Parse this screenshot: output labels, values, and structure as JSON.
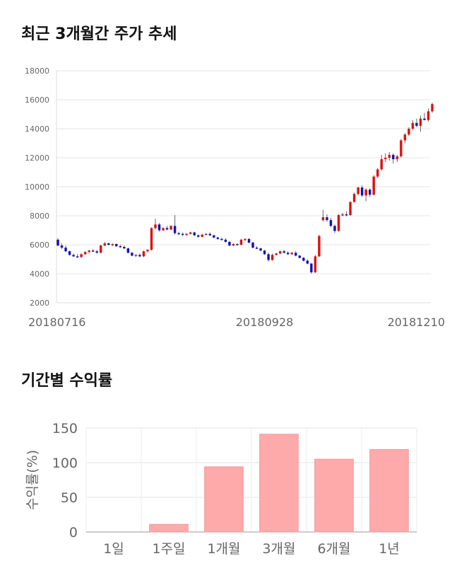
{
  "sections": {
    "price_title": "최근 3개월간 주가 추세",
    "return_title": "기간별 수익률"
  },
  "chart_data": [
    {
      "type": "candlestick",
      "title": "최근 3개월간 주가 추세",
      "ylim": [
        2000,
        18000
      ],
      "y_ticks": [
        "2000",
        "4000",
        "6000",
        "8000",
        "10000",
        "12000",
        "14000",
        "16000",
        "18000"
      ],
      "x_tick_labels": [
        "20180716",
        "20180928",
        "20181210"
      ],
      "x_tick_index": [
        0,
        53,
        105
      ],
      "grid": true,
      "colors": {
        "up": "#dd1111",
        "down": "#1111bb"
      },
      "candles": [
        [
          6350,
          6450,
          5900,
          5950
        ],
        [
          5950,
          6100,
          5700,
          5800
        ],
        [
          5800,
          5950,
          5500,
          5550
        ],
        [
          5550,
          5600,
          5250,
          5300
        ],
        [
          5300,
          5400,
          5150,
          5200
        ],
        [
          5200,
          5350,
          5100,
          5150
        ],
        [
          5150,
          5400,
          5100,
          5350
        ],
        [
          5350,
          5550,
          5300,
          5500
        ],
        [
          5500,
          5650,
          5400,
          5600
        ],
        [
          5600,
          5700,
          5500,
          5550
        ],
        [
          5550,
          5650,
          5400,
          5450
        ],
        [
          5450,
          6000,
          5400,
          5950
        ],
        [
          5950,
          6200,
          5900,
          6100
        ],
        [
          6100,
          6150,
          5950,
          6000
        ],
        [
          6000,
          6100,
          5900,
          6050
        ],
        [
          6050,
          6100,
          5850,
          5900
        ],
        [
          5900,
          6000,
          5800,
          5850
        ],
        [
          5850,
          5950,
          5700,
          5750
        ],
        [
          5750,
          5800,
          5400,
          5450
        ],
        [
          5450,
          5500,
          5200,
          5250
        ],
        [
          5250,
          5350,
          5150,
          5300
        ],
        [
          5300,
          5400,
          5150,
          5200
        ],
        [
          5200,
          5600,
          5150,
          5550
        ],
        [
          5550,
          5700,
          5450,
          5650
        ],
        [
          5650,
          7200,
          5600,
          7150
        ],
        [
          7150,
          7800,
          7050,
          7400
        ],
        [
          7400,
          7500,
          6900,
          7000
        ],
        [
          7000,
          7200,
          6950,
          7150
        ],
        [
          7150,
          7300,
          7000,
          7050
        ],
        [
          7050,
          7350,
          7000,
          7300
        ],
        [
          7300,
          8050,
          6700,
          6800
        ],
        [
          6800,
          6900,
          6650,
          6750
        ],
        [
          6750,
          6850,
          6600,
          6700
        ],
        [
          6700,
          6800,
          6600,
          6750
        ],
        [
          6750,
          6900,
          6700,
          6850
        ],
        [
          6850,
          6900,
          6600,
          6650
        ],
        [
          6650,
          6700,
          6500,
          6550
        ],
        [
          6550,
          6750,
          6500,
          6700
        ],
        [
          6700,
          6800,
          6650,
          6750
        ],
        [
          6750,
          6850,
          6600,
          6650
        ],
        [
          6650,
          6700,
          6450,
          6500
        ],
        [
          6500,
          6550,
          6350,
          6400
        ],
        [
          6400,
          6500,
          6300,
          6350
        ],
        [
          6350,
          6450,
          6150,
          6200
        ],
        [
          6200,
          6250,
          5900,
          5950
        ],
        [
          5950,
          6100,
          5900,
          6050
        ],
        [
          6050,
          6100,
          5950,
          6000
        ],
        [
          6000,
          6400,
          5950,
          6350
        ],
        [
          6350,
          6450,
          6250,
          6400
        ],
        [
          6400,
          6450,
          6100,
          6150
        ],
        [
          6150,
          6200,
          5750,
          5800
        ],
        [
          5800,
          5900,
          5700,
          5750
        ],
        [
          5750,
          5800,
          5550,
          5600
        ],
        [
          5600,
          5650,
          5300,
          5350
        ],
        [
          5350,
          5450,
          4850,
          4950
        ],
        [
          4950,
          5400,
          4900,
          5300
        ],
        [
          5300,
          5450,
          5250,
          5400
        ],
        [
          5400,
          5600,
          5350,
          5550
        ],
        [
          5550,
          5650,
          5400,
          5450
        ],
        [
          5450,
          5550,
          5300,
          5350
        ],
        [
          5350,
          5500,
          5300,
          5450
        ],
        [
          5450,
          5550,
          5200,
          5250
        ],
        [
          5250,
          5300,
          5050,
          5100
        ],
        [
          5100,
          5150,
          4850,
          4900
        ],
        [
          4900,
          5000,
          4650,
          4700
        ],
        [
          4700,
          4750,
          4000,
          4100
        ],
        [
          4100,
          5300,
          4050,
          5200
        ],
        [
          5200,
          6700,
          5150,
          6600
        ],
        [
          7700,
          8400,
          7600,
          7900
        ],
        [
          7900,
          8100,
          7600,
          7700
        ],
        [
          7700,
          7850,
          7200,
          7300
        ],
        [
          7300,
          7400,
          6800,
          6950
        ],
        [
          6950,
          8100,
          6900,
          8050
        ],
        [
          8050,
          8200,
          7950,
          8100
        ],
        [
          8100,
          8300,
          7950,
          8050
        ],
        [
          8050,
          9000,
          8000,
          8950
        ],
        [
          8950,
          9600,
          8900,
          9500
        ],
        [
          9500,
          10000,
          9400,
          9950
        ],
        [
          9950,
          10100,
          9300,
          9400
        ],
        [
          9400,
          9900,
          9000,
          9800
        ],
        [
          9800,
          9900,
          9300,
          9450
        ],
        [
          9450,
          10800,
          9400,
          10700
        ],
        [
          10700,
          11300,
          10600,
          11200
        ],
        [
          11200,
          12200,
          11100,
          11900
        ],
        [
          11900,
          12300,
          11700,
          12000
        ],
        [
          12000,
          12400,
          11800,
          12200
        ],
        [
          12200,
          12300,
          11600,
          11900
        ],
        [
          11900,
          12200,
          11700,
          12100
        ],
        [
          12100,
          13300,
          12000,
          13200
        ],
        [
          13200,
          13700,
          13000,
          13600
        ],
        [
          13600,
          14100,
          13500,
          14000
        ],
        [
          14000,
          14600,
          13900,
          14400
        ],
        [
          14400,
          14700,
          14100,
          14200
        ],
        [
          14200,
          14900,
          13800,
          14700
        ],
        [
          14700,
          15100,
          14600,
          14600
        ],
        [
          14600,
          15400,
          14500,
          15200
        ],
        [
          15200,
          15800,
          15100,
          15700
        ]
      ]
    },
    {
      "type": "bar",
      "title": "기간별 수익률",
      "categories": [
        "1일",
        "1주일",
        "1개월",
        "3개월",
        "6개월",
        "1년"
      ],
      "values": [
        0,
        11,
        94,
        141,
        105,
        119
      ],
      "ylabel": "수익률(%)",
      "ylim": [
        0,
        150
      ],
      "y_ticks": [
        "0",
        "50",
        "100",
        "150"
      ],
      "grid": true,
      "bar_color": "#ffaaaa"
    }
  ]
}
